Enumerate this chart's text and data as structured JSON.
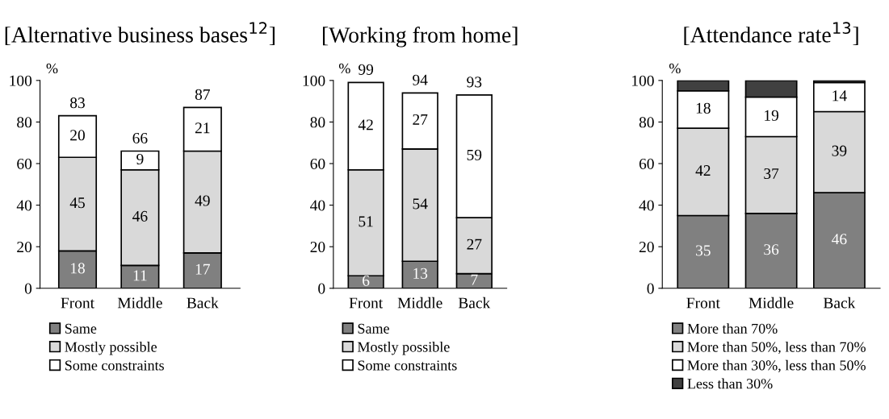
{
  "chart_data": [
    {
      "type": "bar",
      "title": "[Alternative business bases$^{12}$]",
      "ylabel": "%",
      "categories": [
        "Front",
        "Middle",
        "Back"
      ],
      "stacked": true,
      "ylim": [
        0,
        100
      ],
      "yticks": [
        0,
        20,
        40,
        60,
        80,
        100
      ],
      "data_labels": true,
      "totals": [
        "83",
        "66",
        "87"
      ],
      "legend": "bottom",
      "series": [
        {
          "name": "Same",
          "color": "#808080",
          "values": [
            18,
            11,
            17
          ]
        },
        {
          "name": "Mostly possible",
          "color": "#d9d9d9",
          "values": [
            45,
            46,
            49
          ]
        },
        {
          "name": "Some constraints",
          "color": "#ffffff",
          "values": [
            20,
            9,
            21
          ]
        }
      ]
    },
    {
      "type": "bar",
      "title": "[Working from home]",
      "ylabel": "%",
      "categories": [
        "Front",
        "Middle",
        "Back"
      ],
      "stacked": true,
      "ylim": [
        0,
        100
      ],
      "yticks": [
        0,
        20,
        40,
        60,
        80,
        100
      ],
      "data_labels": true,
      "totals": [
        "99",
        "94",
        "93"
      ],
      "legend": "bottom",
      "series": [
        {
          "name": "Same",
          "color": "#808080",
          "values": [
            6,
            13,
            7
          ]
        },
        {
          "name": "Mostly possible",
          "color": "#d9d9d9",
          "values": [
            51,
            54,
            27
          ]
        },
        {
          "name": "Some constraints",
          "color": "#ffffff",
          "values": [
            42,
            27,
            59
          ]
        }
      ]
    },
    {
      "type": "bar",
      "title": "[Attendance rate$^{13}$]",
      "ylabel": "%",
      "categories": [
        "Front",
        "Middle",
        "Back"
      ],
      "stacked": true,
      "ylim": [
        0,
        100
      ],
      "yticks": [
        0,
        20,
        40,
        60,
        80,
        100
      ],
      "legend": "bottom",
      "series": [
        {
          "name": "More than 70%",
          "color": "#808080",
          "values": [
            35,
            36,
            46
          ],
          "value_labels": [
            "35",
            "36",
            "46"
          ]
        },
        {
          "name": "More than 50%, less than 70%",
          "color": "#d9d9d9",
          "values": [
            42,
            37,
            39
          ],
          "value_labels": [
            "42",
            "37",
            "39"
          ]
        },
        {
          "name": "More than 30%, less than 50%",
          "color": "#ffffff",
          "values": [
            18,
            19,
            14
          ],
          "value_labels": [
            "18",
            "19",
            "14"
          ]
        },
        {
          "name": "Less than 30%",
          "color": "#404040",
          "values": [
            5,
            8,
            1
          ],
          "value_labels": [
            null,
            null,
            null
          ]
        }
      ]
    }
  ]
}
